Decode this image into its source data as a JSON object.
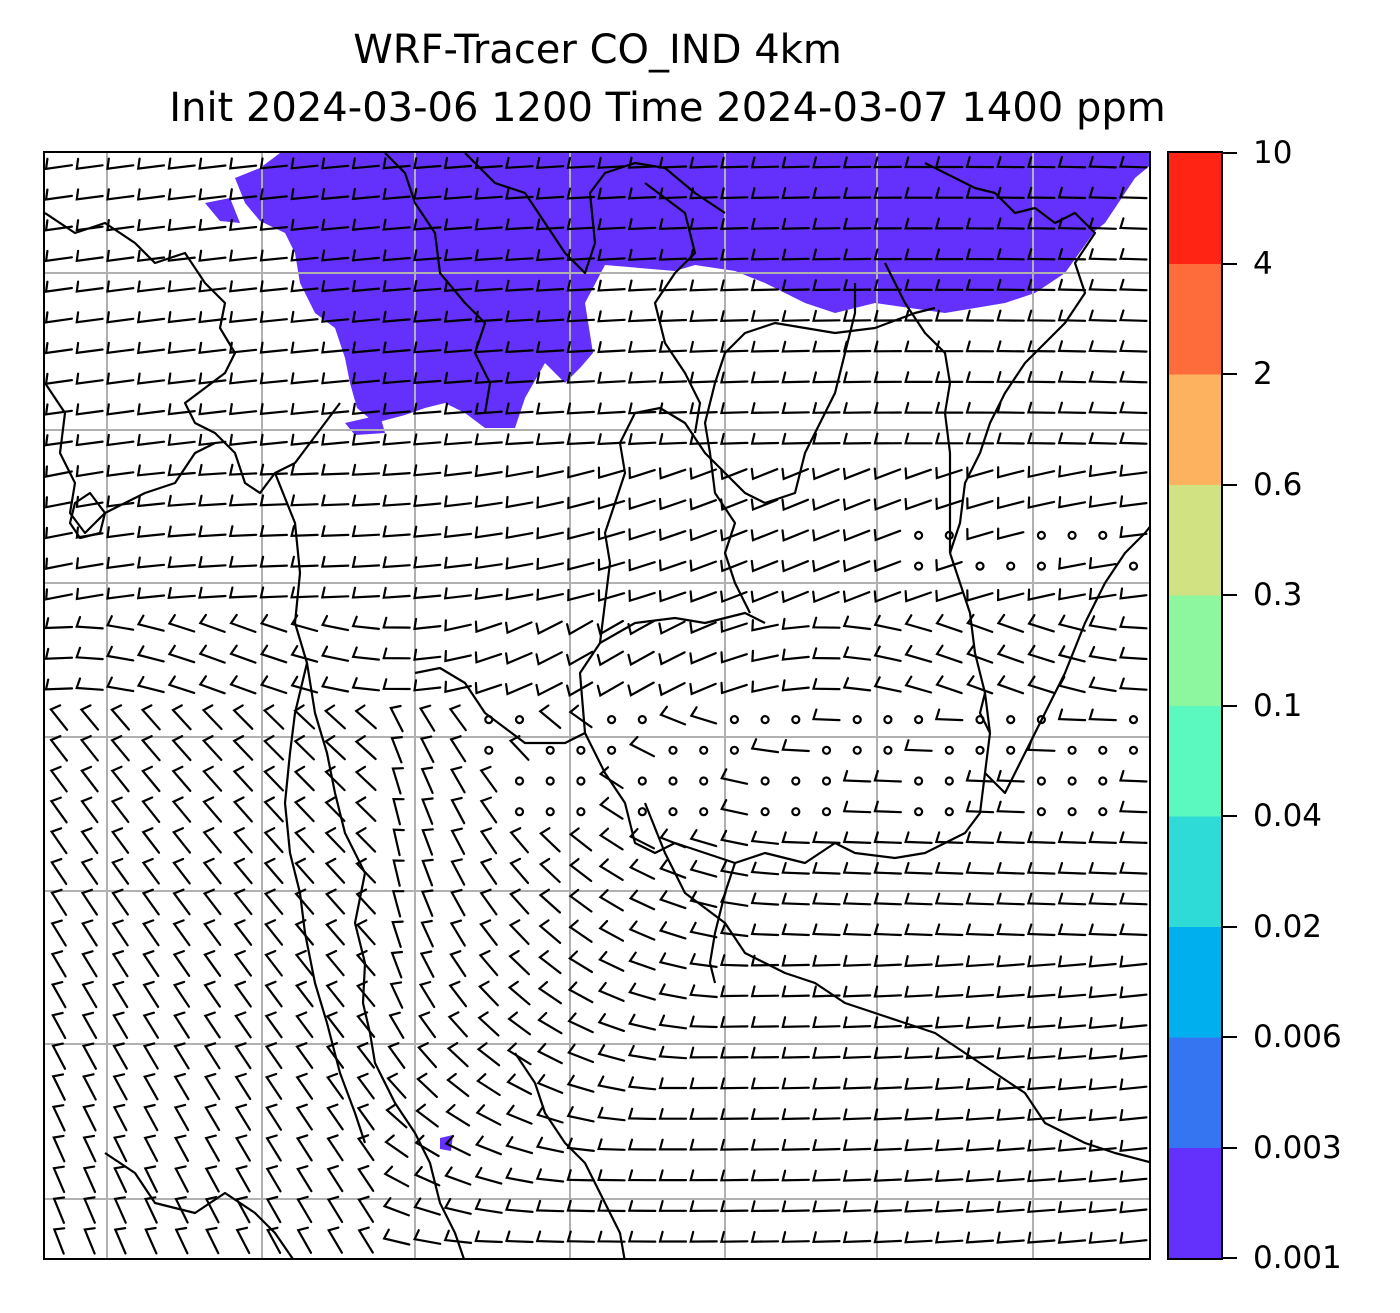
{
  "title": {
    "line1": "WRF-Tracer CO_IND 4km",
    "line2": "Init 2024-03-06 1200 Time 2024-03-07 1400 ppm"
  },
  "colorbar": {
    "levels": [
      "0.001",
      "0.003",
      "0.006",
      "0.02",
      "0.04",
      "0.1",
      "0.3",
      "0.6",
      "2",
      "4",
      "10"
    ],
    "colors": [
      "#6331fb",
      "#3575f2",
      "#00b0ee",
      "#2fdbd6",
      "#5bf9c0",
      "#8df79f",
      "#d1e283",
      "#fdb25f",
      "#fd6c3a",
      "#ff2414"
    ]
  },
  "map": {
    "plume_color": "#6331fb",
    "gridline_color": "#b0b0b0",
    "coastline_color": "#000000"
  }
}
